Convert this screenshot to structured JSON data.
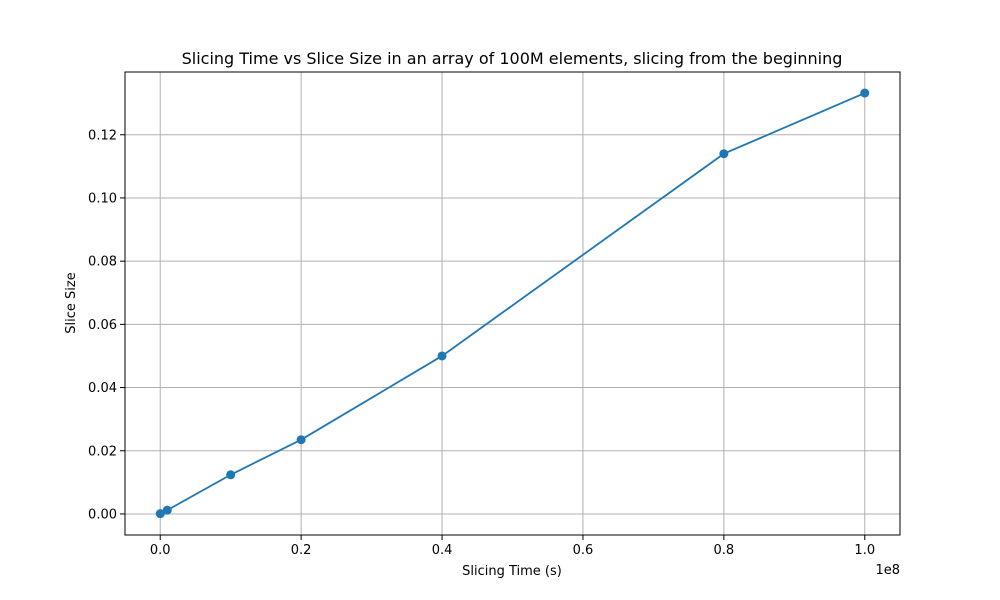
{
  "chart_data": {
    "type": "line",
    "title": "Slicing Time vs Slice Size in an array of 100M elements, slicing from the beginning",
    "xlabel": "Slicing Time (s)",
    "ylabel": "Slice Size",
    "x_offset_text": "1e8",
    "x_multiplier": 100000000,
    "xlim": [
      -5000000,
      105000000
    ],
    "ylim": [
      -0.00666,
      0.13986
    ],
    "x_ticks": [
      0,
      20000000,
      40000000,
      60000000,
      80000000,
      100000000
    ],
    "x_tick_labels": [
      "0.0",
      "0.2",
      "0.4",
      "0.6",
      "0.8",
      "1.0"
    ],
    "y_ticks": [
      0.0,
      0.02,
      0.04,
      0.06,
      0.08,
      0.1,
      0.12
    ],
    "y_tick_labels": [
      "0.00",
      "0.02",
      "0.04",
      "0.06",
      "0.08",
      "0.10",
      "0.12"
    ],
    "grid": true,
    "series": [
      {
        "color": "#1f77b4",
        "marker": "circle",
        "x": [
          10000,
          1000000,
          10000000,
          20000000,
          40000000,
          80000000,
          100000000
        ],
        "y": [
          0.0001,
          0.0012,
          0.0124,
          0.0235,
          0.05,
          0.114,
          0.1332
        ]
      }
    ]
  }
}
